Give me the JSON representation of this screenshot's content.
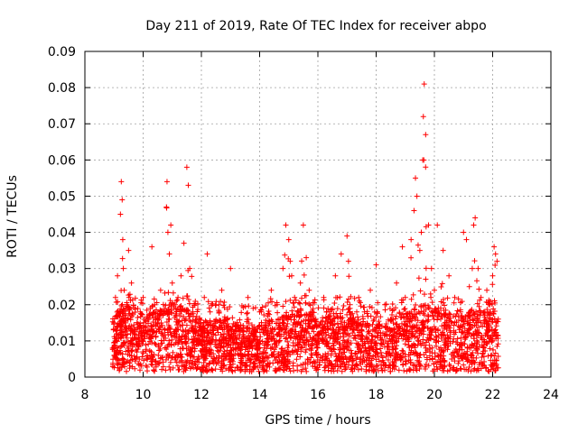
{
  "chart_data": {
    "type": "scatter",
    "title": "Day 211 of 2019, Rate Of TEC Index for receiver abpo",
    "xlabel": "GPS time / hours",
    "ylabel": "ROTI / TECUs",
    "xlim": [
      8,
      24
    ],
    "ylim": [
      0,
      0.09
    ],
    "xticks": [
      8,
      10,
      12,
      14,
      16,
      18,
      20,
      22,
      24
    ],
    "xtick_labels": [
      "8",
      "10",
      "12",
      "14",
      "16",
      "18",
      "20",
      "22",
      "24"
    ],
    "yticks": [
      0,
      0.01,
      0.02,
      0.03,
      0.04,
      0.05,
      0.06,
      0.07,
      0.08,
      0.09
    ],
    "ytick_labels": [
      "0",
      "0.01",
      "0.02",
      "0.03",
      "0.04",
      "0.05",
      "0.06",
      "0.07",
      "0.08",
      "0.09"
    ],
    "grid": true,
    "marker": "+",
    "color": "#ff0000",
    "series": [
      {
        "name": "ROTI",
        "x": [
          8.95,
          9.0,
          9.05,
          9.1,
          9.12,
          9.2,
          9.22,
          9.25,
          9.28,
          9.3,
          9.32,
          9.35,
          9.4,
          9.45,
          9.5,
          9.6,
          9.7,
          9.8,
          9.9,
          10.0,
          10.1,
          10.2,
          10.3,
          10.4,
          10.5,
          10.6,
          10.7,
          10.8,
          10.82,
          10.85,
          10.9,
          10.95,
          11.0,
          11.1,
          11.2,
          11.3,
          11.4,
          11.5,
          11.55,
          11.6,
          11.7,
          11.8,
          11.9,
          12.0,
          12.1,
          12.2,
          12.3,
          12.4,
          12.5,
          12.6,
          12.7,
          12.8,
          12.9,
          13.0,
          13.2,
          13.4,
          13.6,
          13.8,
          14.0,
          14.2,
          14.4,
          14.6,
          14.8,
          14.9,
          15.0,
          15.05,
          15.1,
          15.2,
          15.3,
          15.4,
          15.5,
          15.6,
          15.7,
          15.8,
          16.0,
          16.2,
          16.4,
          16.6,
          16.8,
          17.0,
          17.05,
          17.1,
          17.2,
          17.4,
          17.6,
          17.8,
          18.0,
          18.1,
          18.3,
          18.5,
          18.7,
          18.9,
          19.0,
          19.2,
          19.3,
          19.35,
          19.4,
          19.5,
          19.55,
          19.6,
          19.62,
          19.65,
          19.7,
          19.8,
          19.9,
          20.0,
          20.1,
          20.3,
          20.5,
          20.7,
          20.9,
          21.0,
          21.1,
          21.2,
          21.3,
          21.35,
          21.4,
          21.5,
          21.6,
          21.7,
          21.8,
          21.9,
          22.0,
          22.05,
          22.1,
          22.15
        ],
        "y": [
          0.008,
          0.015,
          0.022,
          0.012,
          0.028,
          0.018,
          0.045,
          0.054,
          0.049,
          0.038,
          0.03,
          0.024,
          0.015,
          0.02,
          0.035,
          0.026,
          0.012,
          0.009,
          0.018,
          0.022,
          0.014,
          0.011,
          0.036,
          0.02,
          0.015,
          0.024,
          0.018,
          0.047,
          0.054,
          0.04,
          0.034,
          0.042,
          0.026,
          0.02,
          0.015,
          0.028,
          0.037,
          0.058,
          0.053,
          0.03,
          0.018,
          0.012,
          0.01,
          0.014,
          0.022,
          0.034,
          0.018,
          0.012,
          0.01,
          0.02,
          0.024,
          0.016,
          0.012,
          0.03,
          0.014,
          0.01,
          0.022,
          0.012,
          0.018,
          0.015,
          0.024,
          0.02,
          0.03,
          0.042,
          0.038,
          0.032,
          0.028,
          0.022,
          0.018,
          0.026,
          0.042,
          0.033,
          0.024,
          0.018,
          0.014,
          0.022,
          0.018,
          0.028,
          0.034,
          0.039,
          0.032,
          0.02,
          0.016,
          0.022,
          0.018,
          0.024,
          0.031,
          0.014,
          0.02,
          0.016,
          0.026,
          0.036,
          0.022,
          0.038,
          0.046,
          0.055,
          0.05,
          0.035,
          0.04,
          0.06,
          0.072,
          0.081,
          0.067,
          0.042,
          0.03,
          0.024,
          0.042,
          0.035,
          0.028,
          0.022,
          0.018,
          0.04,
          0.038,
          0.025,
          0.03,
          0.042,
          0.044,
          0.03,
          0.022,
          0.018,
          0.024,
          0.02,
          0.028,
          0.036,
          0.034,
          0.032
        ],
        "baseline": [
          [
            9.0,
            0.01
          ],
          [
            9.5,
            0.012
          ],
          [
            10.0,
            0.01
          ],
          [
            10.5,
            0.011
          ],
          [
            11.0,
            0.012
          ],
          [
            11.5,
            0.011
          ],
          [
            12.0,
            0.009
          ],
          [
            12.5,
            0.009
          ],
          [
            13.0,
            0.009
          ],
          [
            13.5,
            0.008
          ],
          [
            14.0,
            0.008
          ],
          [
            14.5,
            0.009
          ],
          [
            15.0,
            0.01
          ],
          [
            15.5,
            0.011
          ],
          [
            16.0,
            0.009
          ],
          [
            16.5,
            0.01
          ],
          [
            17.0,
            0.011
          ],
          [
            17.5,
            0.009
          ],
          [
            18.0,
            0.008
          ],
          [
            18.5,
            0.009
          ],
          [
            19.0,
            0.01
          ],
          [
            19.5,
            0.012
          ],
          [
            20.0,
            0.011
          ],
          [
            20.5,
            0.01
          ],
          [
            21.0,
            0.01
          ],
          [
            21.5,
            0.011
          ],
          [
            22.0,
            0.01
          ],
          [
            22.2,
            0.01
          ]
        ]
      }
    ]
  }
}
